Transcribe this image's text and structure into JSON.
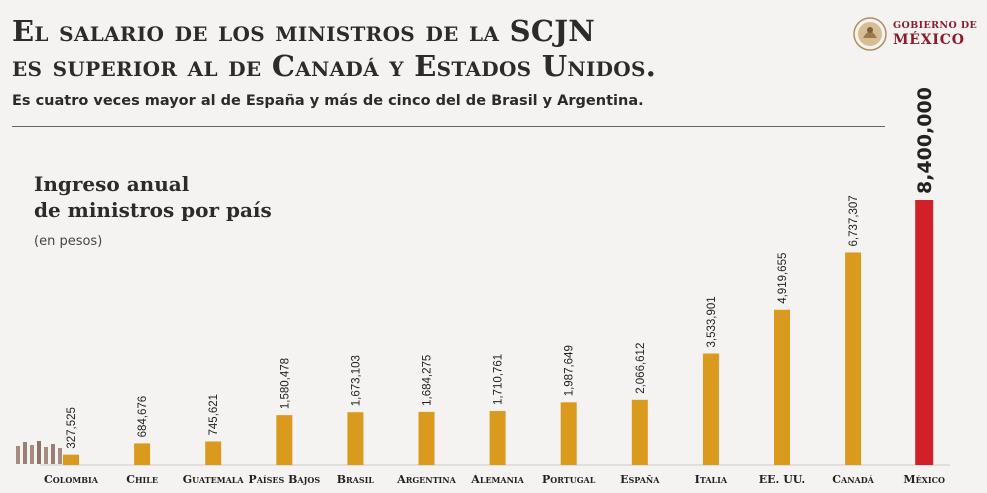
{
  "header": {
    "title_line1": "El salario de los ministros de la SCJN",
    "title_line2": "es superior al de Canadá y Estados Unidos.",
    "subtitle": "Es cuatro veces mayor al de España y más de cinco del de Brasil y Argentina."
  },
  "logo": {
    "line1": "GOBIERNO DE",
    "line2": "MÉXICO",
    "icon": "national-seal-icon"
  },
  "colors": {
    "bar": "#d99a1e",
    "highlight": "#d12027",
    "background": "#f5f3f2",
    "text": "#222222"
  },
  "chart_data": {
    "type": "bar",
    "title": "Ingreso anual de ministros por país",
    "title_line1": "Ingreso anual",
    "title_line2": "de ministros por país",
    "unit": "(en pesos)",
    "categories": [
      "Colombia",
      "Chile",
      "Guatemala",
      "Países Bajos",
      "Brasil",
      "Argentina",
      "Alemania",
      "Portugal",
      "España",
      "Italia",
      "EE. UU.",
      "Canadá",
      "México"
    ],
    "values": [
      327525,
      684676,
      745621,
      1580478,
      1673103,
      1684275,
      1710761,
      1987649,
      2066612,
      3533901,
      4919655,
      6737307,
      8400000
    ],
    "data_labels": [
      "327,525",
      "684,676",
      "745,621",
      "1,580,478",
      "1,673,103",
      "1,684,275",
      "1,710,761",
      "1,987,649",
      "2,066,612",
      "3,533,901",
      "4,919,655",
      "6,737,307",
      "8,400,000"
    ],
    "highlight_category": "México",
    "ylim": [
      0,
      8400000
    ],
    "grid": false,
    "legend": "none"
  }
}
